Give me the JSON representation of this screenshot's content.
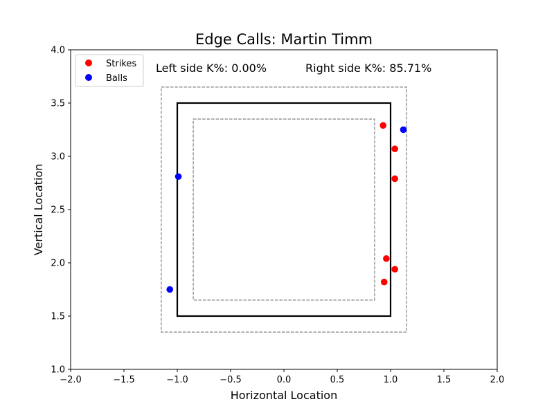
{
  "chart_data": {
    "type": "scatter",
    "title": "Edge Calls: Martin Timm",
    "xlabel": "Horizontal Location",
    "ylabel": "Vertical Location",
    "xlim": [
      -2.0,
      2.0
    ],
    "ylim": [
      1.0,
      4.0
    ],
    "x_ticks": [
      "−2.0",
      "−1.5",
      "−1.0",
      "−0.5",
      "0.0",
      "0.5",
      "1.0",
      "1.5",
      "2.0"
    ],
    "y_ticks": [
      "1.0",
      "1.5",
      "2.0",
      "2.5",
      "3.0",
      "3.5",
      "4.0"
    ],
    "x_tick_values": [
      -2.0,
      -1.5,
      -1.0,
      -0.5,
      0.0,
      0.5,
      1.0,
      1.5,
      2.0
    ],
    "y_tick_values": [
      1.0,
      1.5,
      2.0,
      2.5,
      3.0,
      3.5,
      4.0
    ],
    "legend": {
      "placement": "upper-left",
      "entries": [
        "Strikes",
        "Balls"
      ]
    },
    "zones": {
      "strike_zone": {
        "x": [
          -1.0,
          1.0
        ],
        "y": [
          1.5,
          3.5
        ],
        "style": "solid"
      },
      "outer_edge": {
        "x": [
          -1.15,
          1.15
        ],
        "y": [
          1.35,
          3.65
        ],
        "style": "dashed"
      },
      "inner_edge": {
        "x": [
          -0.85,
          0.85
        ],
        "y": [
          1.65,
          3.35
        ],
        "style": "dashed"
      }
    },
    "series": [
      {
        "name": "Strikes",
        "color": "#ff0000",
        "points": [
          {
            "x": 0.93,
            "y": 3.29
          },
          {
            "x": 1.04,
            "y": 3.07
          },
          {
            "x": 1.04,
            "y": 2.79
          },
          {
            "x": 0.96,
            "y": 2.04
          },
          {
            "x": 1.04,
            "y": 1.94
          },
          {
            "x": 0.94,
            "y": 1.82
          }
        ]
      },
      {
        "name": "Balls",
        "color": "#0000ff",
        "points": [
          {
            "x": 1.12,
            "y": 3.25
          },
          {
            "x": -0.99,
            "y": 2.81
          },
          {
            "x": -1.07,
            "y": 1.75
          }
        ]
      }
    ],
    "annotations": {
      "left": "Left side K%: 0.00%",
      "right": "Right side K%: 85.71%"
    }
  }
}
